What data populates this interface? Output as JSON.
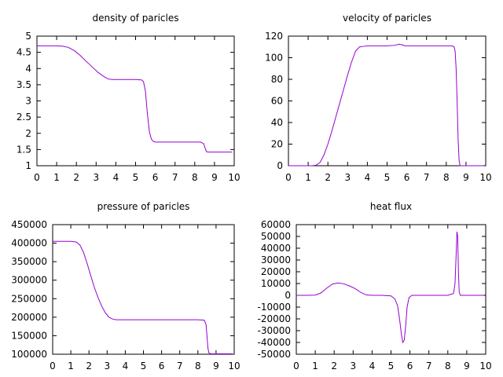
{
  "chart_data": [
    {
      "type": "line",
      "title": "density of paricles",
      "xlabel": "",
      "ylabel": "",
      "xlim": [
        0,
        10
      ],
      "ylim": [
        1,
        5
      ],
      "xticks": [
        0,
        1,
        2,
        3,
        4,
        5,
        6,
        7,
        8,
        9,
        10
      ],
      "xtick_labels": [
        "0",
        "1",
        "2",
        "3",
        "4",
        "5",
        "6",
        "7",
        "8",
        "9",
        "10"
      ],
      "yticks": [
        1,
        1.5,
        2,
        2.5,
        3,
        3.5,
        4,
        4.5,
        5
      ],
      "ytick_labels": [
        "1",
        "1.5",
        "2",
        "2.5",
        "3",
        "3.5",
        "4",
        "4.5",
        "5"
      ],
      "grid": false,
      "series": [
        {
          "x": [
            0,
            0.5,
            1.0,
            1.3,
            1.6,
            1.9,
            2.2,
            2.5,
            2.8,
            3.1,
            3.4,
            3.6,
            3.8,
            4.2,
            4.6,
            5.0,
            5.3,
            5.4,
            5.5,
            5.6,
            5.7,
            5.8,
            5.9,
            6.0,
            6.2,
            6.5,
            7.0,
            7.5,
            8.0,
            8.3,
            8.45,
            8.55,
            8.6,
            8.7,
            9.0,
            9.5,
            9.9
          ],
          "y": [
            4.7,
            4.7,
            4.7,
            4.69,
            4.65,
            4.55,
            4.4,
            4.22,
            4.05,
            3.88,
            3.75,
            3.68,
            3.66,
            3.66,
            3.66,
            3.66,
            3.65,
            3.6,
            3.3,
            2.6,
            2.05,
            1.82,
            1.75,
            1.73,
            1.73,
            1.73,
            1.73,
            1.73,
            1.73,
            1.73,
            1.68,
            1.5,
            1.43,
            1.42,
            1.42,
            1.42,
            1.42
          ]
        }
      ]
    },
    {
      "type": "line",
      "title": "velocity of paricles",
      "xlabel": "",
      "ylabel": "",
      "xlim": [
        0,
        10
      ],
      "ylim": [
        0,
        120
      ],
      "xticks": [
        0,
        1,
        2,
        3,
        4,
        5,
        6,
        7,
        8,
        9,
        10
      ],
      "xtick_labels": [
        "0",
        "1",
        "2",
        "3",
        "4",
        "5",
        "6",
        "7",
        "8",
        "9",
        "10"
      ],
      "yticks": [
        0,
        20,
        40,
        60,
        80,
        100,
        120
      ],
      "ytick_labels": [
        "0",
        "20",
        "40",
        "60",
        "80",
        "100",
        "120"
      ],
      "grid": false,
      "series": [
        {
          "x": [
            0,
            0.5,
            1.0,
            1.2,
            1.4,
            1.6,
            1.8,
            2.0,
            2.2,
            2.4,
            2.6,
            2.8,
            3.0,
            3.2,
            3.4,
            3.6,
            3.8,
            4.0,
            4.5,
            5.0,
            5.4,
            5.6,
            5.75,
            5.9,
            6.2,
            7.0,
            8.0,
            8.3,
            8.4,
            8.45,
            8.5,
            8.55,
            8.6,
            8.65,
            8.7,
            9.0,
            9.5,
            9.9
          ],
          "y": [
            0,
            0,
            0,
            0,
            0.5,
            3,
            10,
            20,
            32,
            45,
            58,
            71,
            84,
            96,
            106,
            110,
            110.5,
            111,
            111,
            111,
            111.5,
            112.5,
            112,
            111,
            111,
            111,
            111,
            111,
            110,
            106,
            90,
            60,
            25,
            5,
            0,
            0,
            0,
            0
          ]
        }
      ]
    },
    {
      "type": "line",
      "title": "pressure of paricles",
      "xlabel": "",
      "ylabel": "",
      "xlim": [
        0,
        10
      ],
      "ylim": [
        100000,
        450000
      ],
      "xticks": [
        0,
        1,
        2,
        3,
        4,
        5,
        6,
        7,
        8,
        9,
        10
      ],
      "xtick_labels": [
        "0",
        "1",
        "2",
        "3",
        "4",
        "5",
        "6",
        "7",
        "8",
        "9",
        "10"
      ],
      "yticks": [
        100000,
        150000,
        200000,
        250000,
        300000,
        350000,
        400000,
        450000
      ],
      "ytick_labels": [
        "100000",
        "150000",
        "200000",
        "250000",
        "300000",
        "350000",
        "400000",
        "450000"
      ],
      "grid": false,
      "series": [
        {
          "x": [
            0,
            0.5,
            1.0,
            1.3,
            1.5,
            1.7,
            1.9,
            2.1,
            2.3,
            2.5,
            2.7,
            2.9,
            3.1,
            3.3,
            3.5,
            3.7,
            4.0,
            5.0,
            6.0,
            7.0,
            8.0,
            8.35,
            8.45,
            8.5,
            8.55,
            8.6,
            8.7,
            9.0,
            9.5,
            9.9
          ],
          "y": [
            405000,
            405000,
            405000,
            403000,
            395000,
            375000,
            345000,
            312000,
            280000,
            253000,
            230000,
            212000,
            200000,
            195000,
            193000,
            193000,
            193000,
            193000,
            193000,
            193000,
            193000,
            192000,
            180000,
            150000,
            118000,
            104000,
            101000,
            101000,
            101000,
            101000
          ]
        }
      ]
    },
    {
      "type": "line",
      "title": "heat flux",
      "xlabel": "",
      "ylabel": "",
      "xlim": [
        0,
        10
      ],
      "ylim": [
        -50000,
        60000
      ],
      "xticks": [
        0,
        1,
        2,
        3,
        4,
        5,
        6,
        7,
        8,
        9,
        10
      ],
      "xtick_labels": [
        "0",
        "1",
        "2",
        "3",
        "4",
        "5",
        "6",
        "7",
        "8",
        "9",
        "10"
      ],
      "yticks": [
        -50000,
        -40000,
        -30000,
        -20000,
        -10000,
        0,
        10000,
        20000,
        30000,
        40000,
        50000,
        60000
      ],
      "ytick_labels": [
        "-50000",
        "-40000",
        "-30000",
        "-20000",
        "-10000",
        "0",
        "10000",
        "20000",
        "30000",
        "40000",
        "50000",
        "60000"
      ],
      "grid": false,
      "series": [
        {
          "x": [
            0,
            0.5,
            1.0,
            1.3,
            1.6,
            1.9,
            2.2,
            2.5,
            2.8,
            3.1,
            3.4,
            3.7,
            4.0,
            4.5,
            5.0,
            5.2,
            5.35,
            5.45,
            5.55,
            5.62,
            5.7,
            5.78,
            5.85,
            5.95,
            6.1,
            6.5,
            7.0,
            8.0,
            8.3,
            8.38,
            8.44,
            8.48,
            8.52,
            8.56,
            8.6,
            8.66,
            8.75,
            9.0,
            9.5,
            9.9
          ],
          "y": [
            0,
            0,
            200,
            2000,
            6000,
            9500,
            10500,
            9800,
            8000,
            5800,
            2500,
            300,
            0,
            0,
            -500,
            -3000,
            -9000,
            -20000,
            -33000,
            -40000,
            -38000,
            -25000,
            -10000,
            -2000,
            0,
            0,
            0,
            0,
            1500,
            10000,
            35000,
            54000,
            50000,
            20000,
            3000,
            0,
            0,
            0,
            0,
            0
          ]
        }
      ]
    }
  ]
}
